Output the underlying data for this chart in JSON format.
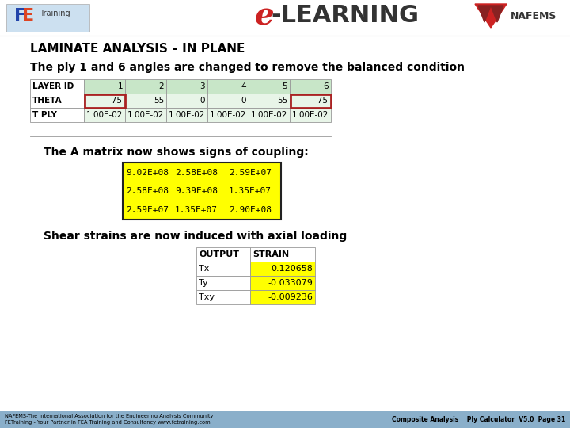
{
  "title_main": "LAMINATE ANALYSIS – IN PLANE",
  "subtitle1": "The ply 1 and 6 angles are changed to remove the balanced condition",
  "subtitle2": "The A matrix now shows signs of coupling:",
  "subtitle3": "Shear strains are now induced with axial loading",
  "layer_table": {
    "headers": [
      "LAYER ID",
      "1",
      "2",
      "3",
      "4",
      "5",
      "6"
    ],
    "theta": [
      "THETA",
      "-75",
      "55",
      "0",
      "0",
      "55",
      "-75"
    ],
    "tply": [
      "T PLY",
      "1.00E-02",
      "1.00E-02",
      "1.00E-02",
      "1.00E-02",
      "1.00E-02",
      "1.00E-02"
    ]
  },
  "a_matrix": [
    [
      "9.02E+08",
      "2.58E+08",
      "2.59E+07"
    ],
    [
      "2.58E+08",
      "9.39E+08",
      "1.35E+07"
    ],
    [
      "2.59E+07",
      "1.35E+07",
      "2.90E+08"
    ]
  ],
  "strain_table": {
    "headers": [
      "OUTPUT",
      "STRAIN"
    ],
    "rows": [
      [
        "Tx",
        "0.120658"
      ],
      [
        "Ty",
        "-0.033079"
      ],
      [
        "Txy",
        "-0.009236"
      ]
    ]
  },
  "bg_color": "#ffffff",
  "header_row_bg": "#c8e6c8",
  "data_row_bg": "#e8f5e8",
  "table_border": "#999999",
  "highlight_red": "#aa2222",
  "a_matrix_bg": "#ffff00",
  "a_matrix_border": "#222222",
  "strain_val_bg": "#ffff00",
  "footer_bg": "#8aafca",
  "footer_text_color": "#000000",
  "footer_text1": "NAFEMS-The International Association for the Engineering Analysis Community",
  "footer_text2": "FETraining - Your Partner in FEA Training and Consultancy www.fetraining.com",
  "footer_right": "Composite Analysis    Ply Calculator  V5.0  Page 31",
  "elearning_e_color": "#cc2222",
  "elearning_rest_color": "#333333"
}
